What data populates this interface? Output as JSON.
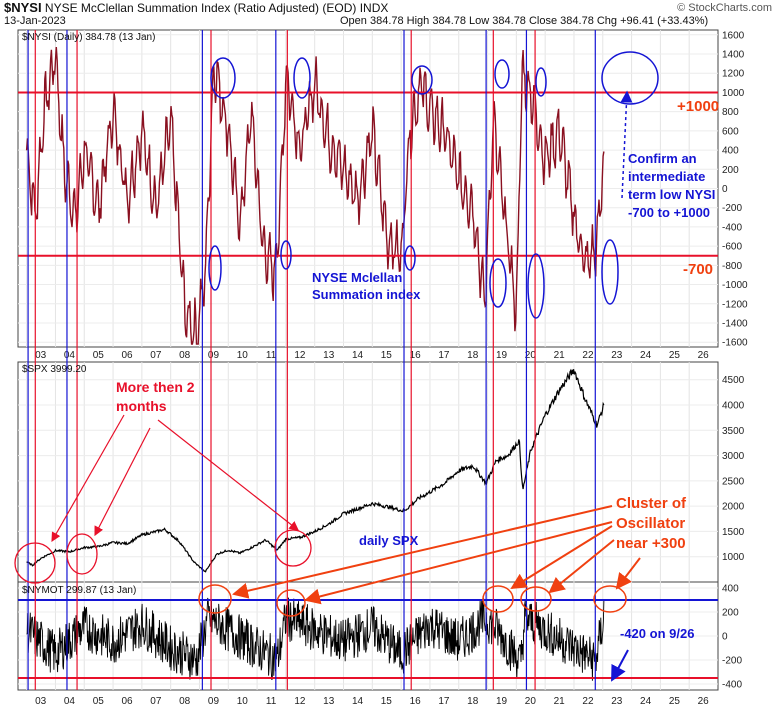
{
  "header": {
    "symbol": "$NYSI",
    "title": "NYSE McClellan Summation Index (Ratio Adjusted) (EOD)",
    "exchange": "INDX",
    "date": "13-Jan-2023",
    "ohlc": "Open 384.78  High 384.78  Low 384.78  Close 384.78  Chg +96.41 (+33.43%)",
    "credit": "© StockCharts.com"
  },
  "panels": {
    "nysi_label": "$NYSI (Daily) 384.78 (13 Jan)",
    "spx_label": "$SPX 3999.20",
    "nymot_label": "$NYMOT 299.87 (13 Jan)"
  },
  "annotations": {
    "plus1000": "+1000",
    "minus700": "-700",
    "confirm": [
      "Confirm an",
      "intermediate",
      "term low NYSI",
      "-700 to +1000"
    ],
    "nysi_name": [
      "NYSE Mclellan",
      "Summation index"
    ],
    "months": [
      "More then 2",
      "months"
    ],
    "daily_spx": "daily SPX",
    "cluster": [
      "Cluster of",
      "Oscillator",
      "near +300"
    ],
    "minus420": "-420 on 9/26"
  },
  "colors": {
    "red": "#e8102a",
    "blue": "#1414d4",
    "orange": "#f04010",
    "line": "#8a1020"
  },
  "chart_data": [
    {
      "type": "line",
      "series": [
        {
          "name": "$NYSI",
          "x": [
            2003,
            2003.3,
            2003.6,
            2004,
            2004.3,
            2004.7,
            2005,
            2005.5,
            2006,
            2006.5,
            2007,
            2007.5,
            2008,
            2008.5,
            2008.9,
            2009.2,
            2009.5,
            2010,
            2010.4,
            2010.8,
            2011.2,
            2011.6,
            2011.8,
            2012,
            2012.5,
            2013,
            2013.5,
            2014,
            2014.5,
            2015,
            2015.5,
            2016,
            2016.3,
            2016.7,
            2017,
            2017.5,
            2018,
            2018.5,
            2018.9,
            2019.2,
            2019.6,
            2020,
            2020.2,
            2020.5,
            2021,
            2021.5,
            2022,
            2022.4,
            2022.8,
            2023.04
          ],
          "values": [
            400,
            -300,
            800,
            1400,
            200,
            -300,
            400,
            -200,
            800,
            -100,
            600,
            -200,
            700,
            -1300,
            -1500,
            -900,
            1300,
            600,
            -400,
            800,
            -600,
            -900,
            -200,
            1200,
            400,
            1100,
            500,
            200,
            -100,
            600,
            -500,
            -700,
            600,
            1100,
            800,
            600,
            100,
            -200,
            -1200,
            700,
            -300,
            -1300,
            1200,
            1000,
            300,
            600,
            -300,
            -800,
            -600,
            385
          ]
        }
      ],
      "ylim": [
        -1650,
        1650
      ],
      "y_ticks": [
        1600,
        1400,
        1200,
        1000,
        800,
        600,
        400,
        200,
        0,
        -200,
        -400,
        -600,
        -800,
        -1000,
        -1200,
        -1400,
        -1600
      ],
      "x_ticks": [
        "03",
        "04",
        "05",
        "06",
        "07",
        "08",
        "09",
        "10",
        "11",
        "12",
        "13",
        "14",
        "15",
        "16",
        "17",
        "18",
        "19",
        "20",
        "21",
        "22",
        "23",
        "24",
        "25",
        "26"
      ],
      "xlim": [
        2002.7,
        2027.0
      ],
      "reference_lines": [
        1000,
        -700
      ]
    },
    {
      "type": "line",
      "series": [
        {
          "name": "$SPX",
          "x": [
            2003,
            2003.2,
            2003.5,
            2004,
            2004.5,
            2005,
            2005.5,
            2006,
            2006.5,
            2007,
            2007.8,
            2008.3,
            2008.8,
            2009.2,
            2009.6,
            2010,
            2010.4,
            2010.8,
            2011.3,
            2011.7,
            2012,
            2012.5,
            2013,
            2013.5,
            2014,
            2014.5,
            2015,
            2015.6,
            2016.1,
            2016.6,
            2017,
            2017.5,
            2018,
            2018.5,
            2018.95,
            2019.3,
            2019.7,
            2020.1,
            2020.22,
            2020.5,
            2021,
            2021.5,
            2022,
            2022.4,
            2022.8,
            2023.04
          ],
          "values": [
            900,
            830,
            970,
            1120,
            1100,
            1180,
            1200,
            1280,
            1260,
            1430,
            1540,
            1300,
            900,
            700,
            1050,
            1130,
            1070,
            1180,
            1330,
            1130,
            1350,
            1380,
            1500,
            1650,
            1850,
            1950,
            2050,
            1980,
            1900,
            2150,
            2280,
            2450,
            2700,
            2800,
            2450,
            2900,
            3000,
            3300,
            2300,
            3100,
            3800,
            4300,
            4700,
            4100,
            3600,
            3999
          ]
        }
      ],
      "ylim": [
        500,
        4850
      ],
      "y_ticks": [
        1000,
        1500,
        2000,
        2500,
        3000,
        3500,
        4000,
        4500
      ]
    },
    {
      "type": "line",
      "series": [
        {
          "name": "$NYMOT",
          "x": [
            2003,
            2004,
            2005,
            2006,
            2007,
            2008,
            2008.9,
            2009.3,
            2010,
            2011,
            2011.7,
            2012,
            2013,
            2014,
            2015,
            2016,
            2017,
            2018,
            2018.95,
            2019.5,
            2020.15,
            2020.3,
            2021,
            2022,
            2022.74,
            2023.04
          ],
          "values": [
            100,
            -300,
            150,
            -100,
            200,
            -200,
            -400,
            300,
            100,
            -200,
            -400,
            300,
            100,
            -100,
            150,
            -300,
            200,
            -100,
            300,
            0,
            -450,
            300,
            100,
            -200,
            -420,
            300
          ]
        }
      ],
      "ylim": [
        -450,
        450
      ],
      "y_ticks": [
        400,
        200,
        0,
        -200,
        -400
      ],
      "reference_lines": [
        300,
        -350
      ]
    }
  ]
}
